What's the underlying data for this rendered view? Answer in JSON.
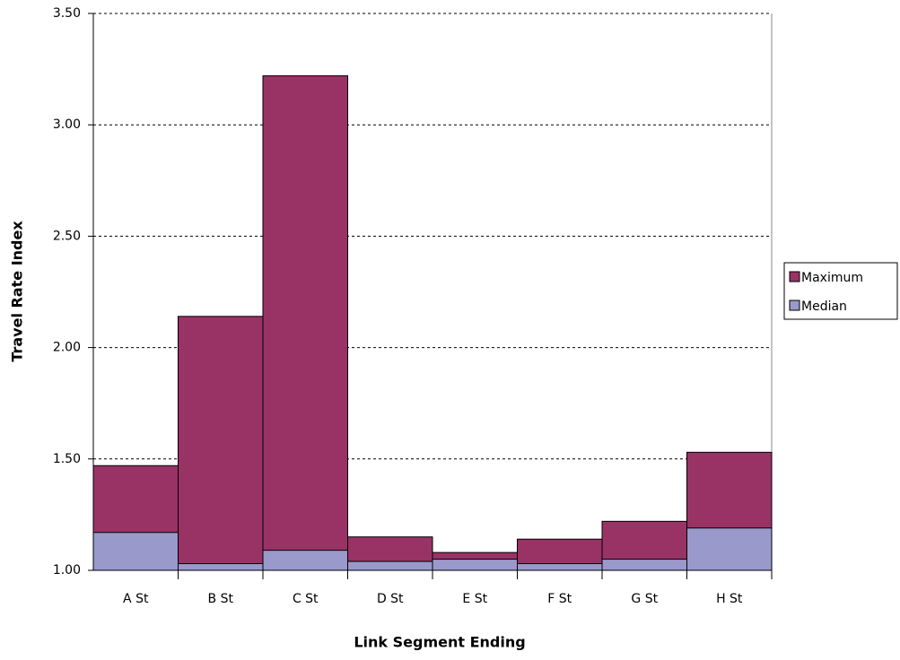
{
  "chart_data": {
    "type": "bar",
    "x_label": "Link Segment Ending",
    "y_label": "Travel Rate Index",
    "categories": [
      "A St",
      "B St",
      "C St",
      "D St",
      "E St",
      "F St",
      "G St",
      "H St"
    ],
    "series": [
      {
        "name": "Maximum",
        "color": "#993366",
        "values": [
          1.47,
          2.14,
          3.22,
          1.15,
          1.08,
          1.14,
          1.22,
          1.53
        ]
      },
      {
        "name": "Median",
        "color": "#9999cc",
        "values": [
          1.17,
          1.03,
          1.09,
          1.04,
          1.05,
          1.03,
          1.05,
          1.19
        ]
      }
    ],
    "ylim": [
      1,
      3.5
    ],
    "yticks": [
      {
        "value": 1,
        "label": "1.00"
      },
      {
        "value": 1.5,
        "label": "1.50"
      },
      {
        "value": 2,
        "label": "2.00"
      },
      {
        "value": 2.5,
        "label": "2.50"
      },
      {
        "value": 3,
        "label": "3.00"
      },
      {
        "value": 3.5,
        "label": "3.50"
      }
    ],
    "grid": true,
    "legend": "right"
  }
}
